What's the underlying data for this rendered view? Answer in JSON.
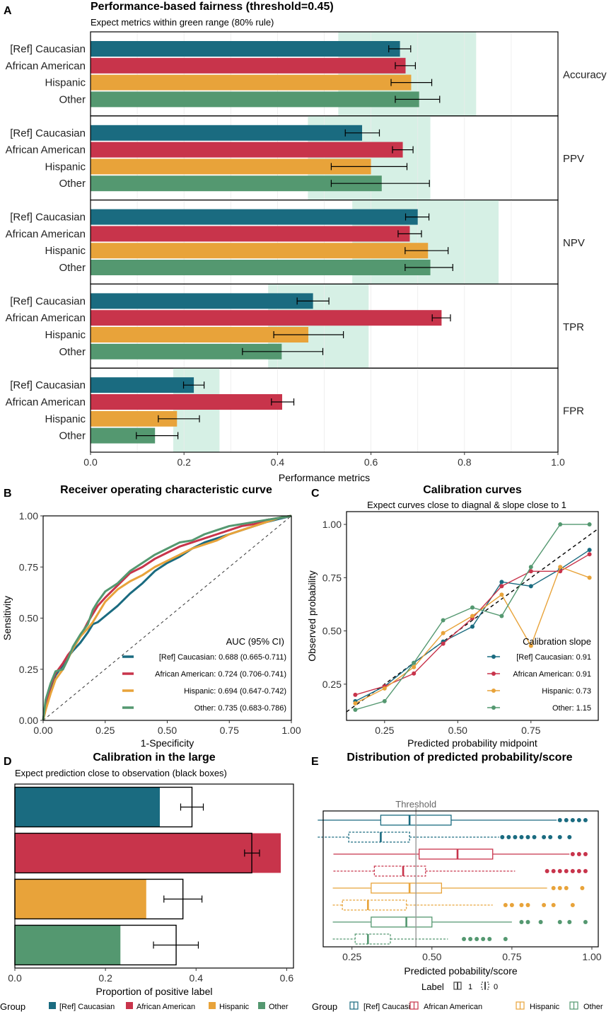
{
  "colors": {
    "caucasian": "#1a6b80",
    "african_american": "#c8344b",
    "hispanic": "#e8a33a",
    "other": "#549870",
    "green_band": "#d6f0e5"
  },
  "groups": [
    "[Ref] Caucasian",
    "African American",
    "Hispanic",
    "Other"
  ],
  "legend": {
    "title": "Group",
    "items": [
      "[Ref] Caucasian",
      "African American",
      "Hispanic",
      "Other"
    ]
  },
  "chart_data": [
    {
      "panel_label": "A",
      "type": "bar",
      "title": "Performance-based fairness (threshold=0.45)",
      "subtitle": "Expect metrics within green range (80% rule)",
      "xlabel": "Performance metrics",
      "xlim": [
        0,
        1
      ],
      "xticks": [
        "0.0",
        "0.2",
        "0.4",
        "0.6",
        "0.8",
        "1.0"
      ],
      "facets": [
        {
          "metric": "Accuracy",
          "band": [
            0.53,
            0.825
          ],
          "values": [
            0.662,
            0.674,
            0.686,
            0.703
          ],
          "ci": [
            [
              0.638,
              0.685
            ],
            [
              0.652,
              0.695
            ],
            [
              0.643,
              0.73
            ],
            [
              0.652,
              0.747
            ]
          ]
        },
        {
          "metric": "PPV",
          "band": [
            0.465,
            0.727
          ],
          "values": [
            0.581,
            0.668,
            0.6,
            0.623
          ],
          "ci": [
            [
              0.545,
              0.618
            ],
            [
              0.646,
              0.69
            ],
            [
              0.515,
              0.677
            ],
            [
              0.515,
              0.725
            ]
          ]
        },
        {
          "metric": "NPV",
          "band": [
            0.56,
            0.873
          ],
          "values": [
            0.7,
            0.683,
            0.722,
            0.727
          ],
          "ci": [
            [
              0.674,
              0.724
            ],
            [
              0.658,
              0.708
            ],
            [
              0.673,
              0.765
            ],
            [
              0.673,
              0.775
            ]
          ]
        },
        {
          "metric": "TPR",
          "band": [
            0.38,
            0.595
          ],
          "values": [
            0.476,
            0.751,
            0.466,
            0.409
          ],
          "ci": [
            [
              0.442,
              0.51
            ],
            [
              0.731,
              0.77
            ],
            [
              0.392,
              0.541
            ],
            [
              0.325,
              0.497
            ]
          ]
        },
        {
          "metric": "FPR",
          "band": [
            0.177,
            0.276
          ],
          "values": [
            0.221,
            0.41,
            0.185,
            0.138
          ],
          "ci": [
            [
              0.199,
              0.243
            ],
            [
              0.387,
              0.435
            ],
            [
              0.145,
              0.233
            ],
            [
              0.098,
              0.187
            ]
          ]
        }
      ]
    },
    {
      "panel_label": "B",
      "type": "line",
      "title": "Receiver operating characteristic curve",
      "xlabel": "1-Specificity",
      "ylabel": "Sensitivity",
      "xlim": [
        0,
        1
      ],
      "ylim": [
        0,
        1
      ],
      "ticks": [
        "0.00",
        "0.25",
        "0.50",
        "0.75",
        "1.00"
      ],
      "legend_title": "AUC (95% CI)",
      "legend_items": [
        "[Ref] Caucasian: 0.688 (0.665-0.711)",
        "African American: 0.724 (0.706-0.741)",
        "Hispanic: 0.694 (0.647-0.742)",
        "Other: 0.735 (0.683-0.786)"
      ],
      "series": [
        {
          "x": [
            0,
            0.01,
            0.03,
            0.05,
            0.08,
            0.1,
            0.12,
            0.15,
            0.18,
            0.2,
            0.22,
            0.25,
            0.3,
            0.35,
            0.4,
            0.45,
            0.5,
            0.55,
            0.6,
            0.65,
            0.7,
            0.75,
            0.8,
            0.85,
            0.9,
            0.95,
            1
          ],
          "y": [
            0,
            0.08,
            0.16,
            0.22,
            0.27,
            0.31,
            0.34,
            0.38,
            0.43,
            0.47,
            0.48,
            0.51,
            0.56,
            0.62,
            0.67,
            0.73,
            0.77,
            0.8,
            0.84,
            0.87,
            0.89,
            0.91,
            0.93,
            0.95,
            0.97,
            0.985,
            1
          ]
        },
        {
          "x": [
            0,
            0.01,
            0.03,
            0.05,
            0.08,
            0.1,
            0.12,
            0.15,
            0.18,
            0.2,
            0.22,
            0.25,
            0.3,
            0.35,
            0.4,
            0.45,
            0.5,
            0.55,
            0.6,
            0.65,
            0.7,
            0.75,
            0.8,
            0.85,
            0.9,
            0.95,
            1
          ],
          "y": [
            0,
            0.07,
            0.17,
            0.23,
            0.28,
            0.32,
            0.35,
            0.41,
            0.48,
            0.52,
            0.56,
            0.6,
            0.66,
            0.72,
            0.75,
            0.79,
            0.82,
            0.85,
            0.87,
            0.89,
            0.91,
            0.93,
            0.95,
            0.96,
            0.98,
            0.99,
            1
          ]
        },
        {
          "x": [
            0,
            0.01,
            0.03,
            0.05,
            0.08,
            0.1,
            0.12,
            0.15,
            0.18,
            0.2,
            0.22,
            0.25,
            0.3,
            0.35,
            0.4,
            0.45,
            0.5,
            0.55,
            0.6,
            0.65,
            0.7,
            0.75,
            0.8,
            0.85,
            0.9,
            0.95,
            1
          ],
          "y": [
            0,
            0.05,
            0.13,
            0.2,
            0.25,
            0.3,
            0.35,
            0.41,
            0.45,
            0.48,
            0.52,
            0.58,
            0.64,
            0.68,
            0.71,
            0.75,
            0.78,
            0.81,
            0.84,
            0.86,
            0.88,
            0.91,
            0.93,
            0.95,
            0.97,
            0.99,
            1
          ]
        },
        {
          "x": [
            0,
            0.01,
            0.03,
            0.05,
            0.08,
            0.1,
            0.12,
            0.15,
            0.18,
            0.2,
            0.22,
            0.25,
            0.3,
            0.35,
            0.4,
            0.45,
            0.5,
            0.55,
            0.6,
            0.65,
            0.7,
            0.75,
            0.8,
            0.85,
            0.9,
            0.95,
            1
          ],
          "y": [
            0,
            0.1,
            0.18,
            0.24,
            0.25,
            0.3,
            0.36,
            0.42,
            0.47,
            0.54,
            0.58,
            0.63,
            0.67,
            0.73,
            0.77,
            0.81,
            0.84,
            0.87,
            0.88,
            0.91,
            0.93,
            0.95,
            0.96,
            0.97,
            0.98,
            0.99,
            1
          ]
        }
      ]
    },
    {
      "panel_label": "C",
      "type": "line",
      "title": "Calibration curves",
      "subtitle": "Expect curves close to diagnal & slope close to 1",
      "xlabel": "Predicted probability midpoint",
      "ylabel": "Observed probability",
      "xlim": [
        0.12,
        0.98
      ],
      "ylim": [
        0.08,
        1.06
      ],
      "xticks": [
        "0.25",
        "0.50",
        "0.75"
      ],
      "yticks": [
        "0.25",
        "0.50",
        "0.75",
        "1.00"
      ],
      "legend_title": "Calibration slope",
      "legend_items": [
        "[Ref] Caucasian: 0.91",
        "African American: 0.91",
        "Hispanic: 0.73",
        "Other: 1.15"
      ],
      "x": [
        0.15,
        0.25,
        0.35,
        0.45,
        0.55,
        0.65,
        0.75,
        0.85,
        0.95
      ],
      "series": [
        {
          "y": [
            0.17,
            0.24,
            0.35,
            0.45,
            0.52,
            0.73,
            0.71,
            0.79,
            0.88
          ]
        },
        {
          "y": [
            0.2,
            0.24,
            0.3,
            0.44,
            0.56,
            0.71,
            0.78,
            0.78,
            0.86
          ]
        },
        {
          "y": [
            0.16,
            0.23,
            0.33,
            0.49,
            0.57,
            0.67,
            0.43,
            0.8,
            0.75
          ]
        },
        {
          "y": [
            0.13,
            0.17,
            0.35,
            0.55,
            0.61,
            0.57,
            0.8,
            1.0,
            1.0
          ]
        }
      ]
    },
    {
      "panel_label": "D",
      "type": "bar",
      "title": "Calibration in the large",
      "subtitle": "Expect prediction close to observation (black boxes)",
      "xlabel": "Proportion of positive label",
      "xlim": [
        0,
        0.615
      ],
      "xticks": [
        "0.0",
        "0.2",
        "0.4",
        "0.6"
      ],
      "observed": [
        0.32,
        0.587,
        0.29,
        0.233
      ],
      "predicted": [
        0.391,
        0.523,
        0.371,
        0.356
      ],
      "predicted_ci": [
        [
          0.366,
          0.416
        ],
        [
          0.507,
          0.54
        ],
        [
          0.329,
          0.413
        ],
        [
          0.306,
          0.405
        ]
      ]
    },
    {
      "panel_label": "E",
      "type": "boxplot",
      "title": "Distribution of predicted probability/score",
      "xlabel": "Predicted pobability/score",
      "xlim": [
        0.16,
        1.02
      ],
      "xticks": [
        "0.25",
        "0.50",
        "0.75",
        "1.00"
      ],
      "threshold_label": "Threshold",
      "threshold": 0.45,
      "label_legend": {
        "title": "Label",
        "items": [
          "1",
          "0"
        ]
      },
      "boxes": [
        {
          "label": "1",
          "q": [
            0.143,
            0.34,
            0.43,
            0.56,
            0.89
          ]
        },
        {
          "label": "0",
          "q": [
            0.143,
            0.24,
            0.34,
            0.43,
            0.71
          ]
        },
        {
          "label": "1",
          "q": [
            0.192,
            0.46,
            0.58,
            0.69,
            0.93
          ]
        },
        {
          "label": "0",
          "q": [
            0.192,
            0.32,
            0.41,
            0.48,
            0.76
          ]
        },
        {
          "label": "1",
          "q": [
            0.19,
            0.31,
            0.43,
            0.53,
            0.86
          ]
        },
        {
          "label": "0",
          "q": [
            0.19,
            0.22,
            0.3,
            0.42,
            0.69
          ]
        },
        {
          "label": "1",
          "q": [
            0.19,
            0.31,
            0.42,
            0.5,
            0.75
          ]
        },
        {
          "label": "0",
          "q": [
            0.19,
            0.26,
            0.3,
            0.37,
            0.55
          ]
        }
      ],
      "outliers": [
        [
          0.9,
          0.92,
          0.94,
          0.96,
          0.98
        ],
        [
          0.72,
          0.74,
          0.76,
          0.78,
          0.8,
          0.82,
          0.85,
          0.87,
          0.9,
          0.93
        ],
        [
          0.94,
          0.96,
          0.98
        ],
        [
          0.86,
          0.88,
          0.9,
          0.92,
          0.94,
          0.96,
          0.98
        ],
        [
          0.88,
          0.9,
          0.92,
          0.97
        ],
        [
          0.73,
          0.75,
          0.78,
          0.8,
          0.85,
          0.88,
          0.94
        ],
        [
          0.78,
          0.8,
          0.84,
          0.9,
          0.93,
          0.98
        ],
        [
          0.6,
          0.62,
          0.64,
          0.66,
          0.68,
          0.73
        ]
      ]
    }
  ]
}
